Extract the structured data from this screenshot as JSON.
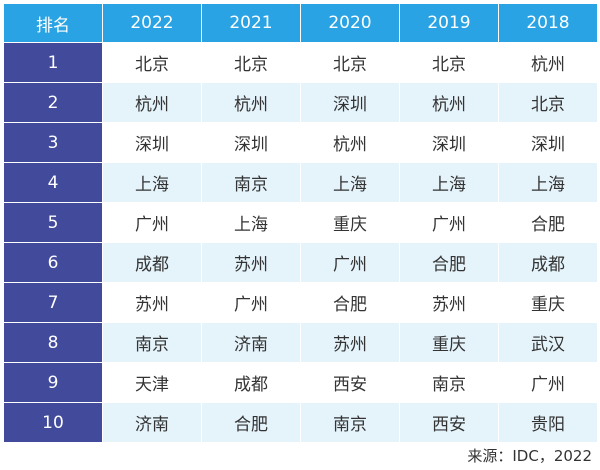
{
  "table": {
    "headers": [
      "排名",
      "2022",
      "2021",
      "2020",
      "2019",
      "2018"
    ],
    "rows": [
      {
        "rank": "1",
        "cities": [
          "北京",
          "北京",
          "北京",
          "北京",
          "杭州"
        ]
      },
      {
        "rank": "2",
        "cities": [
          "杭州",
          "杭州",
          "深圳",
          "杭州",
          "北京"
        ]
      },
      {
        "rank": "3",
        "cities": [
          "深圳",
          "深圳",
          "杭州",
          "深圳",
          "深圳"
        ]
      },
      {
        "rank": "4",
        "cities": [
          "上海",
          "南京",
          "上海",
          "上海",
          "上海"
        ]
      },
      {
        "rank": "5",
        "cities": [
          "广州",
          "上海",
          "重庆",
          "广州",
          "合肥"
        ]
      },
      {
        "rank": "6",
        "cities": [
          "成都",
          "苏州",
          "广州",
          "合肥",
          "成都"
        ]
      },
      {
        "rank": "7",
        "cities": [
          "苏州",
          "广州",
          "合肥",
          "苏州",
          "重庆"
        ]
      },
      {
        "rank": "8",
        "cities": [
          "南京",
          "济南",
          "苏州",
          "重庆",
          "武汉"
        ]
      },
      {
        "rank": "9",
        "cities": [
          "天津",
          "成都",
          "西安",
          "南京",
          "广州"
        ]
      },
      {
        "rank": "10",
        "cities": [
          "济南",
          "合肥",
          "南京",
          "西安",
          "贵阳"
        ]
      }
    ]
  },
  "source": "来源：IDC，2022",
  "colors": {
    "header_bg": "#29a3e3",
    "rank_bg": "#414a9b",
    "row_shaded": "#e5f3fb",
    "row_light": "#ffffff"
  }
}
